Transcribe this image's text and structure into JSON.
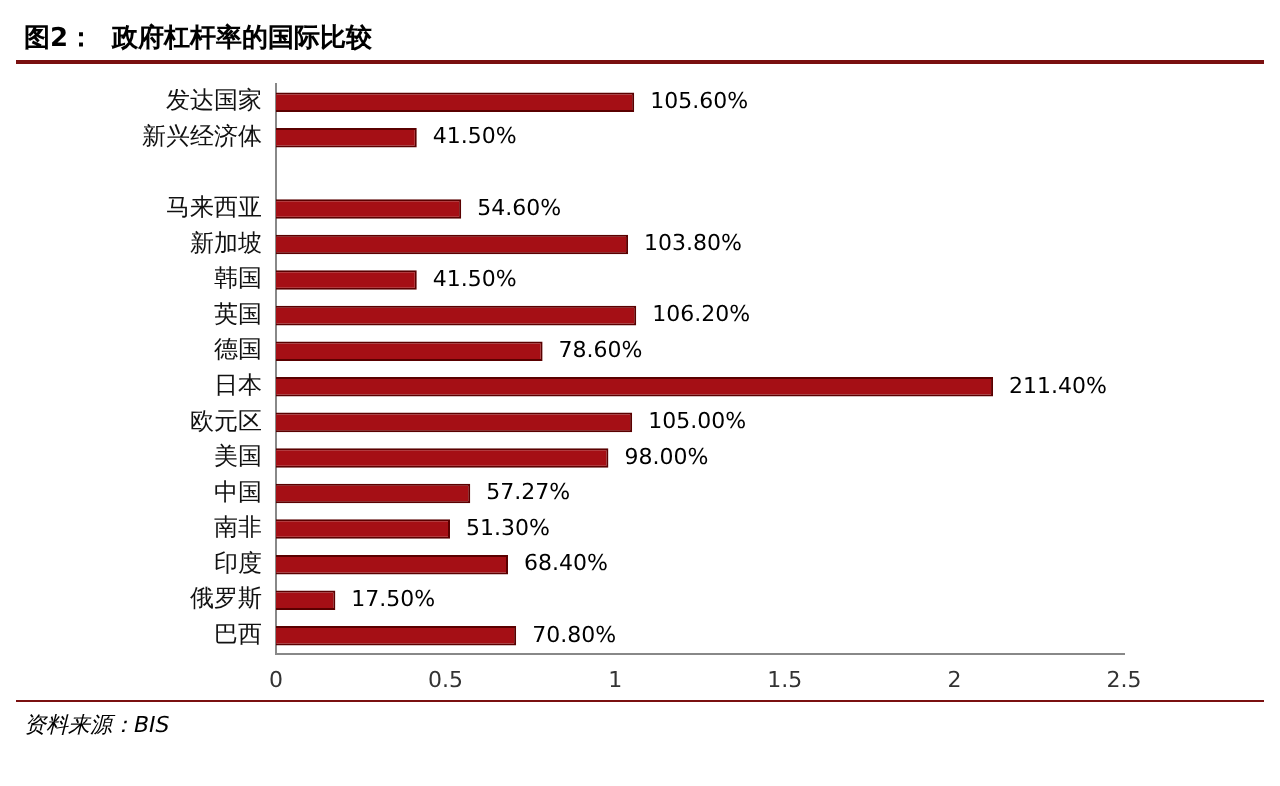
{
  "chart_data": {
    "type": "bar",
    "orientation": "horizontal",
    "title": "图2：  政府杠杆率的国际比较",
    "categories": [
      "发达国家",
      "新兴经济体",
      null,
      "马来西亚",
      "新加坡",
      "韩国",
      "英国",
      "德国",
      "日本",
      "欧元区",
      "美国",
      "中国",
      "南非",
      "印度",
      "俄罗斯",
      "巴西"
    ],
    "values": [
      1.056,
      0.415,
      null,
      0.546,
      1.038,
      0.415,
      1.062,
      0.786,
      2.114,
      1.05,
      0.98,
      0.5727,
      0.513,
      0.684,
      0.175,
      0.708
    ],
    "value_labels": [
      "105.60%",
      "41.50%",
      null,
      "54.60%",
      "103.80%",
      "41.50%",
      "106.20%",
      "78.60%",
      "211.40%",
      "105.00%",
      "98.00%",
      "57.27%",
      "51.30%",
      "68.40%",
      "17.50%",
      "70.80%"
    ],
    "color": "#a50f15",
    "xlim": [
      0,
      2.5
    ],
    "xticks": [
      0,
      0.5,
      1,
      1.5,
      2,
      2.5
    ],
    "annotations": [
      "资料来源：BIS"
    ]
  }
}
